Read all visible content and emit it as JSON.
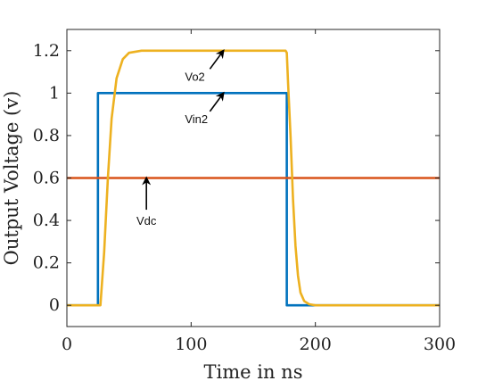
{
  "chart_data": {
    "type": "line",
    "xlabel": "Time in ns",
    "ylabel": "Output Voltage (v)",
    "xlim": [
      0,
      300
    ],
    "ylim": [
      -0.1,
      1.3
    ],
    "xticks": [
      0,
      100,
      200,
      300
    ],
    "xtick_labels": [
      "0",
      "100",
      "200",
      "300"
    ],
    "yticks": [
      0,
      0.2,
      0.4,
      0.6,
      0.8,
      1,
      1.2
    ],
    "ytick_labels": [
      "0",
      "0.2",
      "0.4",
      "0.6",
      "0.8",
      "1",
      "1.2"
    ],
    "grid": false,
    "series": [
      {
        "name": "Vin2",
        "color": "#0072BD",
        "x": [
          0,
          25,
          25,
          177,
          177,
          300
        ],
        "y": [
          0,
          0,
          1,
          1,
          0,
          0
        ]
      },
      {
        "name": "Vdc",
        "color": "#D95319",
        "x": [
          0,
          300
        ],
        "y": [
          0.6,
          0.6
        ]
      },
      {
        "name": "Vo2",
        "color": "#EDB120",
        "x": [
          0,
          27,
          30,
          33,
          36,
          40,
          45,
          50,
          60,
          80,
          120,
          176,
          177,
          178,
          180,
          182,
          184,
          186,
          188,
          191,
          195,
          200,
          300
        ],
        "y": [
          0,
          0,
          0.25,
          0.6,
          0.88,
          1.07,
          1.16,
          1.19,
          1.2,
          1.2,
          1.2,
          1.2,
          1.19,
          1.05,
          0.8,
          0.5,
          0.28,
          0.14,
          0.06,
          0.02,
          0.005,
          0,
          0
        ]
      }
    ],
    "annotations": [
      {
        "text": "Vo2",
        "x": 95,
        "y": 1.08,
        "arrow_to": [
          126,
          1.2
        ]
      },
      {
        "text": "Vin2",
        "x": 95,
        "y": 0.88,
        "arrow_to": [
          126,
          1.0
        ]
      },
      {
        "text": "Vdc",
        "x": 64,
        "y": 0.4,
        "arrow_to": [
          64,
          0.6
        ]
      }
    ]
  }
}
